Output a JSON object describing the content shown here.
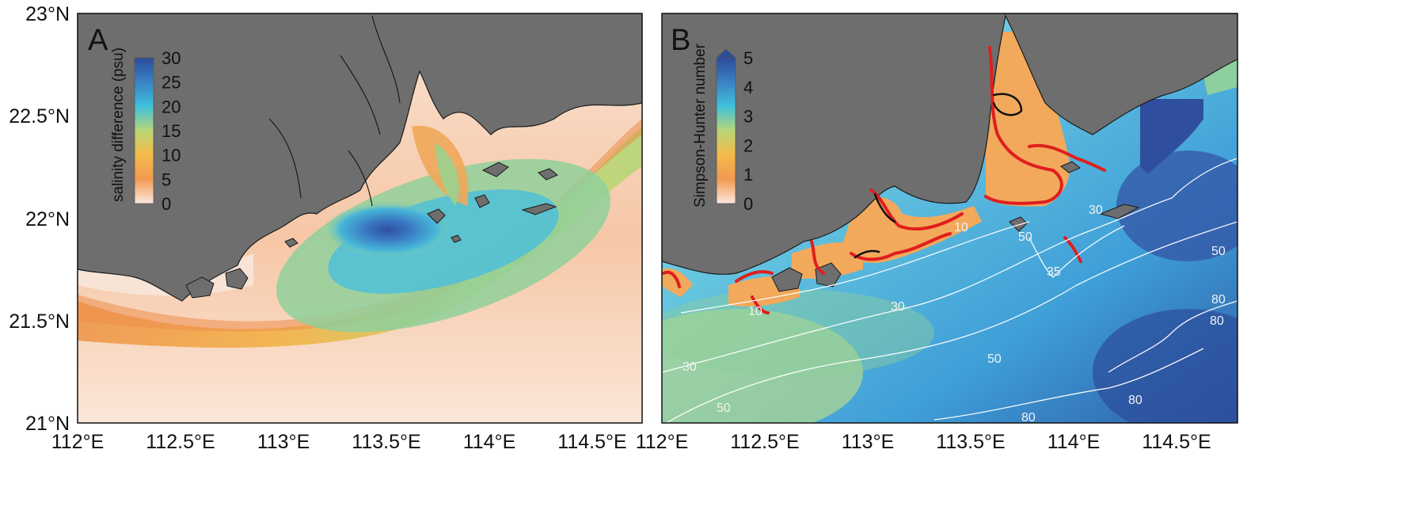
{
  "axes": {
    "y_ticks": [
      "23°N",
      "22.5°N",
      "22°N",
      "21.5°N",
      "21°N"
    ],
    "x_ticks_a": [
      "112°E",
      "112.5°E",
      "113°E",
      "113.5°E",
      "114°E",
      "114.5°E"
    ],
    "x_ticks_b": [
      "112°E",
      "112.5°E",
      "113°E",
      "113.5°E",
      "114°E",
      "114.5°E"
    ],
    "lon_range": [
      112.0,
      114.8
    ],
    "lat_range": [
      21.0,
      23.0
    ]
  },
  "panel_a": {
    "letter": "A",
    "colorbar": {
      "label": "salinity difference (psu)",
      "ticks": [
        "30",
        "25",
        "20",
        "15",
        "10",
        "5",
        "0"
      ],
      "range": [
        0,
        30
      ]
    }
  },
  "panel_b": {
    "letter": "B",
    "colorbar": {
      "label": "Simpson-Hunter number",
      "ticks": [
        "5",
        "4",
        "3",
        "2",
        "1",
        "0"
      ],
      "range": [
        0,
        5
      ],
      "extend": "max"
    },
    "contour_labels": [
      "10",
      "10",
      "30",
      "30",
      "30",
      "35",
      "50",
      "50",
      "50",
      "50",
      "80",
      "80",
      "80",
      "80"
    ]
  },
  "colors": {
    "land": "#6e6e6e",
    "coastline": "#1a1a1a",
    "colormap": [
      "#fbe8dc",
      "#f29a50",
      "#f3bb4a",
      "#b9d676",
      "#3ec0dc",
      "#3a7fc4",
      "#2c4c9a"
    ],
    "front_red": "#e01e1e",
    "front_black": "#111111",
    "contour": "#ffffff"
  }
}
